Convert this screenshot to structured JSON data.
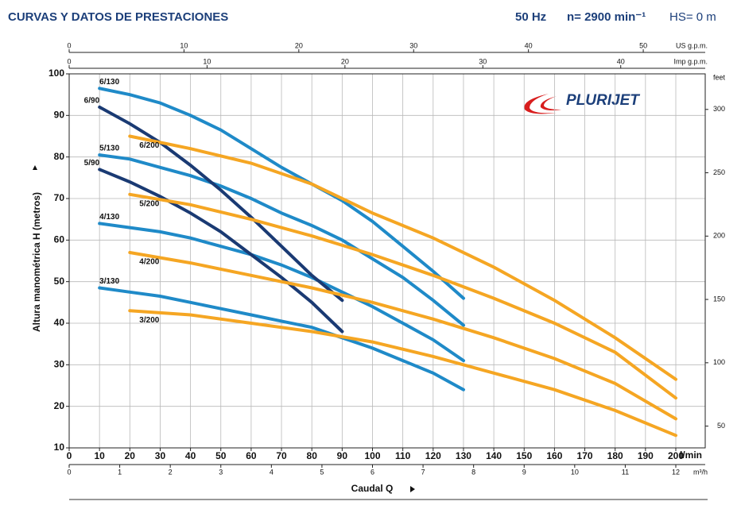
{
  "chart_data": {
    "type": "line",
    "title": "CURVAS Y DATOS DE PRESTACIONES",
    "frequency": "50 Hz",
    "speed": "n= 2900 min⁻¹",
    "suction": "HS= 0 m",
    "brand": "PLURIJET",
    "xlabel": "Caudal Q",
    "x_unit": "l/min",
    "ylabel": "Altura manométrica H (metros)",
    "xlim": [
      0,
      200
    ],
    "xticks": [
      0,
      10,
      20,
      30,
      40,
      50,
      60,
      70,
      80,
      90,
      100,
      110,
      120,
      130,
      140,
      150,
      160,
      170,
      180,
      190,
      200
    ],
    "ylim": [
      10,
      100
    ],
    "yticks": [
      10,
      20,
      30,
      40,
      50,
      60,
      70,
      80,
      90,
      100
    ],
    "grid": true,
    "secondary_axes": {
      "us_gpm": {
        "label": "US g.p.m.",
        "lim": [
          0,
          52.834
        ],
        "ticks": [
          0,
          10,
          20,
          30,
          40,
          50
        ]
      },
      "imp_gpm": {
        "label": "Imp g.p.m.",
        "lim": [
          0,
          43.994
        ],
        "ticks": [
          0,
          10,
          20,
          30,
          40
        ]
      },
      "m3h": {
        "label": "m³/h",
        "lim": [
          0,
          12
        ],
        "ticks": [
          0,
          1,
          2,
          3,
          4,
          5,
          6,
          7,
          8,
          9,
          10,
          11,
          12
        ]
      },
      "feet": {
        "label": "feet",
        "lim": [
          32.808,
          328.084
        ],
        "ticks": [
          50,
          100,
          150,
          200,
          250,
          300
        ]
      }
    },
    "series": [
      {
        "name": "6/130",
        "color": "#1f8ac8",
        "x": [
          10,
          20,
          30,
          40,
          50,
          60,
          70,
          80,
          90,
          100,
          110,
          120,
          130
        ],
        "values": [
          96.5,
          95,
          93,
          90,
          86.5,
          82,
          77.5,
          73.5,
          69.5,
          64.5,
          58.5,
          52.5,
          46
        ]
      },
      {
        "name": "5/130",
        "color": "#1f8ac8",
        "x": [
          10,
          20,
          30,
          40,
          50,
          60,
          70,
          80,
          90,
          100,
          110,
          120,
          130
        ],
        "values": [
          80.5,
          79.5,
          77.5,
          75.5,
          73,
          70,
          66.5,
          63.5,
          60,
          55.5,
          51,
          45.5,
          39.5
        ]
      },
      {
        "name": "4/130",
        "color": "#1f8ac8",
        "x": [
          10,
          20,
          30,
          40,
          50,
          60,
          70,
          80,
          90,
          100,
          110,
          120,
          130
        ],
        "values": [
          64,
          63,
          62,
          60.5,
          58.5,
          56.5,
          54,
          51,
          47.5,
          44,
          40,
          36,
          31
        ]
      },
      {
        "name": "3/130",
        "color": "#1f8ac8",
        "x": [
          10,
          20,
          30,
          40,
          50,
          60,
          70,
          80,
          90,
          100,
          110,
          120,
          130
        ],
        "values": [
          48.5,
          47.5,
          46.5,
          45,
          43.5,
          42,
          40.5,
          39,
          36.5,
          34,
          31,
          28,
          24
        ]
      },
      {
        "name": "6/90",
        "color": "#1a3a73",
        "x": [
          10,
          20,
          30,
          40,
          50,
          60,
          70,
          80,
          90
        ],
        "values": [
          92,
          88,
          83.5,
          78,
          72,
          65.5,
          58.5,
          51.5,
          45.5
        ]
      },
      {
        "name": "5/90",
        "color": "#1a3a73",
        "x": [
          10,
          20,
          30,
          40,
          50,
          60,
          70,
          80,
          90
        ],
        "values": [
          77,
          74,
          70.5,
          66.5,
          62,
          56.5,
          51,
          45,
          38
        ]
      },
      {
        "name": "6/200",
        "color": "#f5a623",
        "x": [
          20,
          40,
          60,
          80,
          100,
          120,
          140,
          160,
          180,
          200
        ],
        "values": [
          85,
          82,
          78.5,
          73.5,
          66.5,
          60.5,
          53.5,
          45.5,
          36.5,
          26.5
        ]
      },
      {
        "name": "5/200",
        "color": "#f5a623",
        "x": [
          20,
          40,
          60,
          80,
          100,
          120,
          140,
          160,
          180,
          200
        ],
        "values": [
          71,
          68.5,
          65,
          61,
          56.5,
          51.5,
          46,
          40,
          33,
          22
        ]
      },
      {
        "name": "4/200",
        "color": "#f5a623",
        "x": [
          20,
          40,
          60,
          80,
          100,
          120,
          140,
          160,
          180,
          200
        ],
        "values": [
          57,
          54.5,
          51.5,
          48.5,
          45,
          41,
          36.5,
          31.5,
          25.5,
          17
        ]
      },
      {
        "name": "3/200",
        "color": "#f5a623",
        "x": [
          20,
          40,
          60,
          80,
          100,
          120,
          140,
          160,
          180,
          200
        ],
        "values": [
          43,
          42,
          40,
          38,
          35.5,
          32,
          28,
          24,
          19,
          13
        ]
      }
    ]
  }
}
